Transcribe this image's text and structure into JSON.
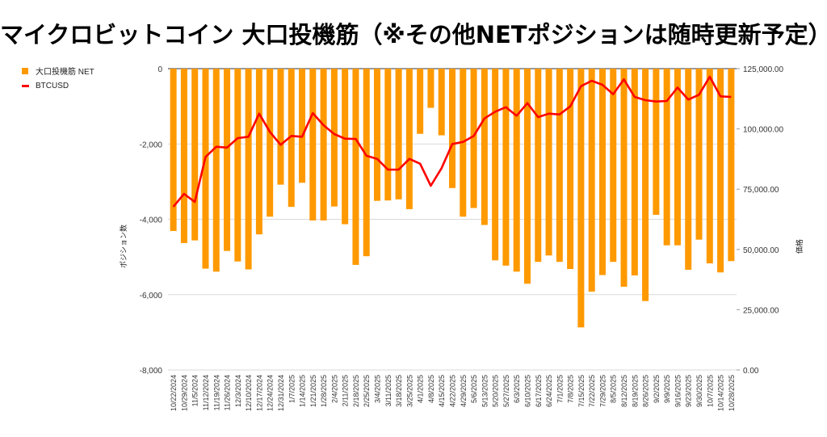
{
  "title": "マイクロビットコイン 大口投機筋（※その他NETポジションは随時更新予定）",
  "legend": {
    "bar": "大口投機筋  NET",
    "line": "BTCUSD"
  },
  "colors": {
    "bar": "#ff9900",
    "line": "#ff0000",
    "grid": "#d9d9d9"
  },
  "chart_data": {
    "type": "bar+line",
    "title": "マイクロビットコイン 大口投機筋（※その他NETポジションは随時更新予定）",
    "ylabel_left": "ポジション数",
    "ylabel_right": "価格",
    "ylim_left": [
      -8000,
      0
    ],
    "ylim_right": [
      0,
      125000
    ],
    "left_ticks": [
      "0",
      "-2,000",
      "-4,000",
      "-6,000",
      "-8,000"
    ],
    "left_tick_values": [
      0,
      -2000,
      -4000,
      -6000,
      -8000
    ],
    "right_ticks": [
      "125,000.00",
      "100,000.00",
      "75,000.00",
      "50,000.00",
      "25,000.00",
      "0.00"
    ],
    "right_tick_values": [
      125000,
      100000,
      75000,
      50000,
      25000,
      0
    ],
    "grid": true,
    "legend_position": "top-left",
    "categories": [
      "10/22/2024",
      "10/29/2024",
      "11/5/2024",
      "11/12/2024",
      "11/19/2024",
      "11/26/2024",
      "12/3/2024",
      "12/10/2024",
      "12/17/2024",
      "12/24/2024",
      "12/31/2024",
      "1/7/2025",
      "1/14/2025",
      "1/21/2025",
      "1/28/2025",
      "2/4/2025",
      "2/11/2025",
      "2/18/2025",
      "2/25/2025",
      "3/4/2025",
      "3/11/2025",
      "3/18/2025",
      "3/25/2025",
      "4/1/2025",
      "4/8/2025",
      "4/15/2025",
      "4/22/2025",
      "4/29/2025",
      "5/6/2025",
      "5/13/2025",
      "5/20/2025",
      "5/27/2025",
      "6/3/2025",
      "6/10/2025",
      "6/17/2025",
      "6/24/2025",
      "7/1/2025",
      "7/8/2025",
      "7/15/2025",
      "7/22/2025",
      "7/29/2025",
      "8/5/2025",
      "8/12/2025",
      "8/19/2025",
      "8/26/2025",
      "9/2/2025",
      "9/9/2025",
      "9/16/2025",
      "9/23/2025",
      "9/30/2025",
      "10/7/2025",
      "10/14/2025",
      "10/28/2025"
    ],
    "series": [
      {
        "name": "大口投機筋  NET",
        "type": "bar",
        "axis": "left",
        "values": [
          -4310,
          -4630,
          -4560,
          -5310,
          -5390,
          -4840,
          -5120,
          -5330,
          -4400,
          -3930,
          -3080,
          -3670,
          -3030,
          -4030,
          -4030,
          -3660,
          -4130,
          -5210,
          -4980,
          -3510,
          -3500,
          -3470,
          -3730,
          -1730,
          -1040,
          -1770,
          -3170,
          -3930,
          -3700,
          -4150,
          -5090,
          -5230,
          -5390,
          -5710,
          -5130,
          -4960,
          -5130,
          -5320,
          -6870,
          -5920,
          -5480,
          -5130,
          -5790,
          -5490,
          -6170,
          -3880,
          -4690,
          -4690,
          -5340,
          -4540,
          -5170,
          -5410,
          -5110
        ]
      },
      {
        "name": "BTCUSD",
        "type": "line",
        "axis": "right",
        "values": [
          67700,
          73050,
          69700,
          88370,
          92600,
          92260,
          96180,
          96740,
          106330,
          98760,
          93400,
          97080,
          96740,
          106560,
          101540,
          97850,
          95950,
          95840,
          88910,
          87580,
          83110,
          83110,
          87580,
          85560,
          76410,
          83680,
          93730,
          94610,
          97080,
          104330,
          107130,
          109020,
          105460,
          110700,
          104890,
          106330,
          106000,
          109360,
          117730,
          119970,
          118300,
          114380,
          120530,
          113270,
          111930,
          111370,
          111590,
          117170,
          112160,
          114170,
          121650,
          113490,
          113270
        ]
      }
    ]
  }
}
